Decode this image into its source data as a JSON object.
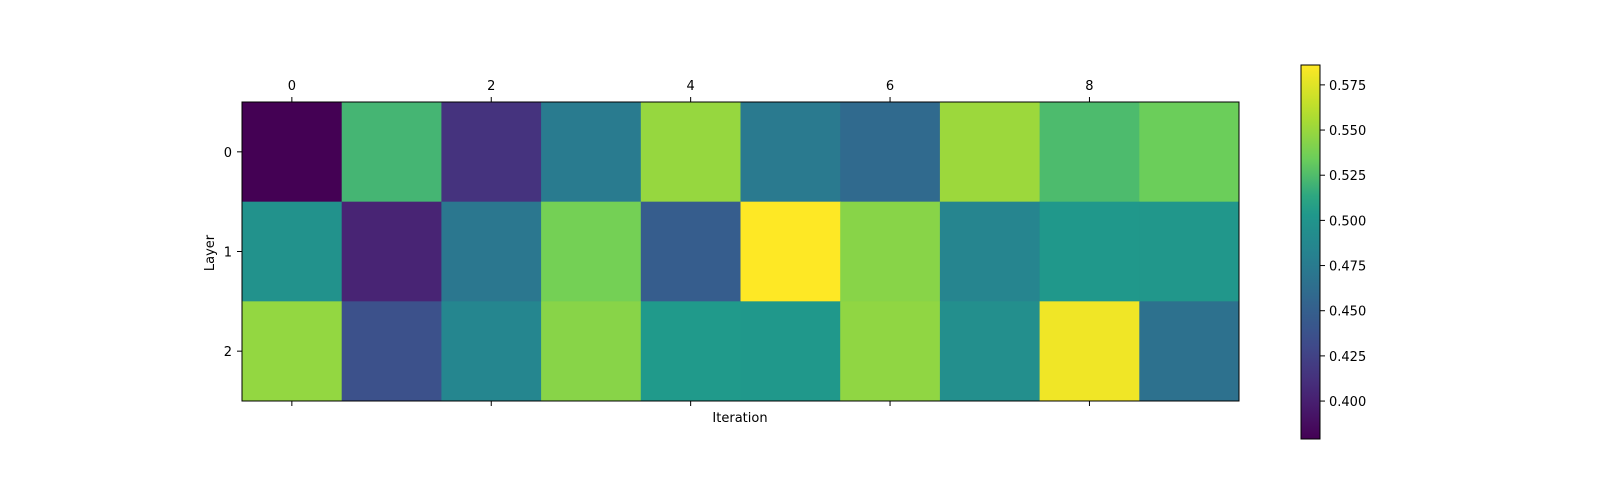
{
  "chart_data": {
    "type": "heatmap",
    "title": "",
    "xlabel": "Iteration",
    "ylabel": "Layer",
    "x_ticks": [
      0,
      2,
      4,
      6,
      8
    ],
    "y_ticks": [
      0,
      1,
      2
    ],
    "x_categories": [
      0,
      1,
      2,
      3,
      4,
      5,
      6,
      7,
      8,
      9
    ],
    "y_categories": [
      0,
      1,
      2
    ],
    "values": [
      [
        0.379,
        0.521,
        0.414,
        0.475,
        0.549,
        0.474,
        0.459,
        0.551,
        0.524,
        0.534
      ],
      [
        0.497,
        0.403,
        0.471,
        0.537,
        0.448,
        0.586,
        0.544,
        0.484,
        0.503,
        0.502
      ],
      [
        0.548,
        0.437,
        0.485,
        0.544,
        0.505,
        0.503,
        0.547,
        0.494,
        0.581,
        0.466
      ]
    ],
    "colormap": "viridis",
    "colorbar": {
      "vmin": 0.379,
      "vmax": 0.586,
      "ticks": [
        0.4,
        0.425,
        0.45,
        0.475,
        0.5,
        0.525,
        0.55,
        0.575
      ],
      "tick_labels": [
        "0.400",
        "0.425",
        "0.450",
        "0.475",
        "0.500",
        "0.525",
        "0.550",
        "0.575"
      ]
    },
    "x_axis_position": "top",
    "grid": false
  }
}
